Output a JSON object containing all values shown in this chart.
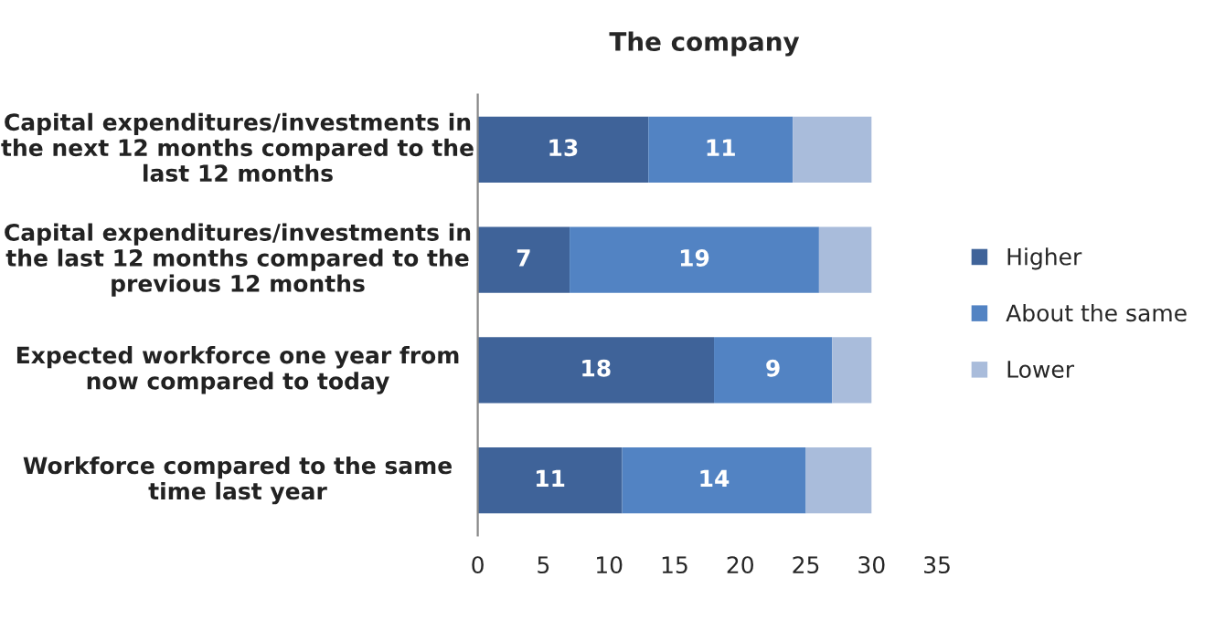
{
  "chart_data": {
    "type": "bar",
    "orientation": "horizontal",
    "stacked": true,
    "title": "The company",
    "categories": [
      "Capital expenditures/investments in the next 12 months compared to the last 12 months",
      "Capital expenditures/investments in the last 12 months compared to the previous 12 months",
      "Expected workforce one year from now compared to today",
      "Workforce compared to the same time last year"
    ],
    "series": [
      {
        "name": "Higher",
        "color": "#3f6399",
        "values": [
          13,
          7,
          18,
          11
        ],
        "value_labels": [
          "13",
          "7",
          "18",
          "11"
        ]
      },
      {
        "name": "About the same",
        "color": "#5283c3",
        "values": [
          11,
          19,
          9,
          14
        ],
        "value_labels": [
          "11",
          "19",
          "9",
          "14"
        ]
      },
      {
        "name": "Lower",
        "color": "#a9bcdb",
        "values": [
          6,
          4,
          3,
          5
        ]
      }
    ],
    "xlim": [
      0,
      35
    ],
    "xticks": [
      0,
      5,
      10,
      15,
      20,
      25,
      30,
      35
    ],
    "grid": false,
    "legend": "right"
  }
}
